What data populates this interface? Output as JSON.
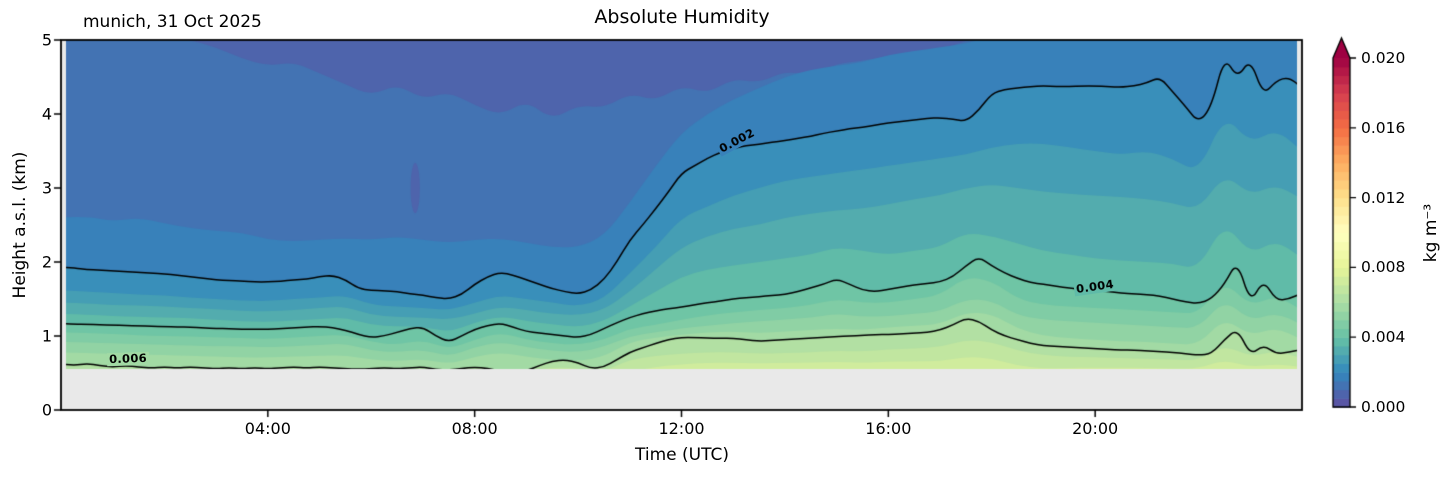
{
  "header": {
    "title": "Absolute Humidity",
    "annotation": "munich, 31 Oct 2025"
  },
  "axes": {
    "xlabel": "Time (UTC)",
    "ylabel": "Height a.s.l. (km)",
    "background": "#e9e9e9",
    "spine_color": "#000000",
    "x_ticks": [
      {
        "hour": 4,
        "label": "04:00"
      },
      {
        "hour": 8,
        "label": "08:00"
      },
      {
        "hour": 12,
        "label": "12:00"
      },
      {
        "hour": 16,
        "label": "16:00"
      },
      {
        "hour": 20,
        "label": "20:00"
      }
    ],
    "y_ticks": [
      {
        "km": 0,
        "label": "0"
      },
      {
        "km": 1,
        "label": "1"
      },
      {
        "km": 2,
        "label": "2"
      },
      {
        "km": 3,
        "label": "3"
      },
      {
        "km": 4,
        "label": "4"
      },
      {
        "km": 5,
        "label": "5"
      }
    ]
  },
  "colorbar": {
    "label": "kg m⁻³",
    "vmin": 0.0,
    "vmax": 0.02,
    "n_bands": 40,
    "extend": "max",
    "over_color": "#9e0142",
    "outline_color": "#000000",
    "ticks": [
      {
        "value": 0.0,
        "label": "0.000"
      },
      {
        "value": 0.004,
        "label": "0.004"
      },
      {
        "value": 0.008,
        "label": "0.008"
      },
      {
        "value": 0.012,
        "label": "0.012"
      },
      {
        "value": 0.016,
        "label": "0.016"
      },
      {
        "value": 0.02,
        "label": "0.020"
      }
    ]
  },
  "colormap": {
    "name": "Spectral_r",
    "anchors": [
      "#5e4fa2",
      "#3288bd",
      "#66c2a5",
      "#abdda4",
      "#e6f598",
      "#ffffbf",
      "#fee08b",
      "#fdae61",
      "#f46d43",
      "#d53e4f",
      "#9e0142"
    ]
  },
  "chart_data": {
    "type": "heatmap",
    "title": "Absolute Humidity",
    "xlabel": "Time (UTC)",
    "ylabel": "Height a.s.l. (km)",
    "units": "kg m⁻³",
    "x_range_hours": [
      0,
      24
    ],
    "y_range_km": [
      0,
      5
    ],
    "data_floor_km": 0.555,
    "band_interval": 0.0005,
    "contour_line_color": "#000000",
    "labeled_contour_levels": [
      0.002,
      0.004,
      0.006
    ],
    "contour_labels": [
      {
        "text": "0.002",
        "hour": 13.07,
        "km": 3.64,
        "angle_deg": -28,
        "bg": "#3881ba"
      },
      {
        "text": "0.004",
        "hour": 20.0,
        "km": 1.66,
        "angle_deg": -8,
        "bg": "#60bba8"
      },
      {
        "text": "0.006",
        "hour": 1.3,
        "km": 0.69,
        "angle_deg": -2,
        "bg": "#a2daa4"
      }
    ],
    "anomaly": {
      "center_hour": 6.85,
      "center_km": 3.0,
      "rx_hours": 0.09,
      "ry_km": 0.34,
      "band_value": 0.00075
    },
    "isolines": [
      {
        "level": 0.001,
        "step_h": 0.5,
        "heights_km": [
          5.15,
          5.12,
          5.1,
          5.08,
          5.05,
          5.0,
          4.9,
          4.75,
          4.65,
          4.7,
          4.55,
          4.4,
          4.25,
          4.4,
          4.2,
          4.3,
          4.12,
          3.98,
          4.18,
          3.92,
          4.12,
          4.08,
          4.28,
          4.18,
          4.38,
          4.28,
          4.48,
          4.42,
          4.58,
          4.52,
          4.68,
          4.72,
          4.78,
          4.82,
          4.88,
          4.98,
          5.12,
          5.18,
          5.22,
          5.22,
          5.25,
          5.22,
          5.18,
          5.08,
          4.98,
          5.18,
          5.08,
          5.12,
          5.02
        ]
      },
      {
        "level": 0.0015,
        "step_h": 0.5,
        "heights_km": [
          2.6,
          2.62,
          2.55,
          2.6,
          2.52,
          2.46,
          2.42,
          2.4,
          2.3,
          2.28,
          2.3,
          2.32,
          2.3,
          2.34,
          2.3,
          2.26,
          2.3,
          2.32,
          2.26,
          2.2,
          2.2,
          2.35,
          2.8,
          3.3,
          3.75,
          4.0,
          4.2,
          4.35,
          4.5,
          4.6,
          4.65,
          4.7,
          4.8,
          4.85,
          4.9,
          4.95,
          5.05,
          5.08,
          5.08,
          5.06,
          5.08,
          5.06,
          5.05,
          5.02,
          4.98,
          5.1,
          5.05,
          5.08,
          5.02
        ]
      },
      {
        "level": 0.002,
        "step_h": 0.25,
        "heights_km": [
          1.93,
          1.92,
          1.9,
          1.89,
          1.88,
          1.87,
          1.86,
          1.85,
          1.84,
          1.82,
          1.8,
          1.78,
          1.76,
          1.75,
          1.74,
          1.73,
          1.73,
          1.74,
          1.76,
          1.77,
          1.8,
          1.82,
          1.76,
          1.64,
          1.62,
          1.61,
          1.6,
          1.57,
          1.55,
          1.52,
          1.5,
          1.56,
          1.7,
          1.8,
          1.86,
          1.82,
          1.76,
          1.7,
          1.64,
          1.6,
          1.57,
          1.62,
          1.76,
          2.0,
          2.3,
          2.5,
          2.72,
          2.95,
          3.2,
          3.3,
          3.4,
          3.48,
          3.54,
          3.57,
          3.59,
          3.62,
          3.64,
          3.67,
          3.7,
          3.74,
          3.77,
          3.8,
          3.82,
          3.85,
          3.88,
          3.9,
          3.92,
          3.94,
          3.95,
          3.93,
          3.9,
          4.05,
          4.28,
          4.33,
          4.35,
          4.37,
          4.38,
          4.37,
          4.37,
          4.38,
          4.38,
          4.37,
          4.36,
          4.38,
          4.42,
          4.5,
          4.3,
          4.1,
          3.88,
          4.1,
          4.78,
          4.48,
          4.75,
          4.25,
          4.45,
          4.5,
          4.35
        ]
      },
      {
        "level": 0.0025,
        "step_h": 0.5,
        "heights_km": [
          1.62,
          1.6,
          1.58,
          1.56,
          1.55,
          1.52,
          1.5,
          1.48,
          1.47,
          1.5,
          1.52,
          1.55,
          1.42,
          1.4,
          1.38,
          1.35,
          1.45,
          1.55,
          1.5,
          1.45,
          1.4,
          1.5,
          1.85,
          2.2,
          2.6,
          2.75,
          2.9,
          3.0,
          3.1,
          3.15,
          3.2,
          3.25,
          3.3,
          3.35,
          3.4,
          3.45,
          3.55,
          3.6,
          3.6,
          3.55,
          3.5,
          3.45,
          3.5,
          3.4,
          3.2,
          4.0,
          3.6,
          3.8,
          3.5
        ]
      },
      {
        "level": 0.003,
        "step_h": 0.5,
        "heights_km": [
          1.45,
          1.44,
          1.42,
          1.41,
          1.4,
          1.38,
          1.36,
          1.34,
          1.33,
          1.35,
          1.38,
          1.4,
          1.28,
          1.26,
          1.25,
          1.22,
          1.3,
          1.4,
          1.35,
          1.3,
          1.28,
          1.35,
          1.6,
          1.9,
          2.2,
          2.35,
          2.45,
          2.5,
          2.6,
          2.65,
          2.7,
          2.72,
          2.78,
          2.85,
          2.9,
          3.0,
          3.05,
          3.0,
          2.95,
          2.92,
          2.9,
          2.88,
          2.85,
          2.8,
          2.7,
          3.2,
          2.9,
          3.05,
          2.85
        ]
      },
      {
        "level": 0.0035,
        "step_h": 0.5,
        "heights_km": [
          1.3,
          1.29,
          1.27,
          1.26,
          1.25,
          1.24,
          1.22,
          1.2,
          1.19,
          1.21,
          1.23,
          1.25,
          1.15,
          1.13,
          1.13,
          1.05,
          1.18,
          1.27,
          1.2,
          1.16,
          1.12,
          1.2,
          1.4,
          1.6,
          1.8,
          1.9,
          1.95,
          2.0,
          2.05,
          2.1,
          2.2,
          2.15,
          2.1,
          2.15,
          2.2,
          2.4,
          2.35,
          2.25,
          2.15,
          2.1,
          2.05,
          2.02,
          2.0,
          1.98,
          1.9,
          2.55,
          2.1,
          2.3,
          2.05
        ]
      },
      {
        "level": 0.004,
        "step_h": 0.25,
        "heights_km": [
          1.17,
          1.16,
          1.16,
          1.15,
          1.15,
          1.14,
          1.14,
          1.13,
          1.13,
          1.12,
          1.12,
          1.11,
          1.1,
          1.1,
          1.09,
          1.09,
          1.09,
          1.1,
          1.11,
          1.12,
          1.13,
          1.11,
          1.08,
          1.02,
          0.98,
          1.0,
          1.05,
          1.1,
          1.12,
          1.0,
          0.92,
          1.0,
          1.09,
          1.14,
          1.17,
          1.12,
          1.06,
          1.04,
          1.02,
          1.0,
          0.98,
          1.02,
          1.1,
          1.18,
          1.25,
          1.3,
          1.34,
          1.37,
          1.39,
          1.42,
          1.45,
          1.47,
          1.5,
          1.52,
          1.53,
          1.55,
          1.56,
          1.6,
          1.65,
          1.7,
          1.77,
          1.7,
          1.62,
          1.6,
          1.63,
          1.66,
          1.69,
          1.71,
          1.73,
          1.8,
          1.95,
          2.07,
          1.95,
          1.85,
          1.78,
          1.72,
          1.7,
          1.67,
          1.65,
          1.63,
          1.62,
          1.6,
          1.58,
          1.57,
          1.56,
          1.54,
          1.5,
          1.46,
          1.44,
          1.5,
          1.7,
          2.02,
          1.44,
          1.76,
          1.48,
          1.5,
          1.58
        ]
      },
      {
        "level": 0.0045,
        "step_h": 0.5,
        "heights_km": [
          1.05,
          1.04,
          1.03,
          1.01,
          1.0,
          0.99,
          0.98,
          0.97,
          0.96,
          0.98,
          1.0,
          1.02,
          0.92,
          0.88,
          0.95,
          0.82,
          0.95,
          1.05,
          0.95,
          0.9,
          0.88,
          0.95,
          1.1,
          1.15,
          1.22,
          1.28,
          1.32,
          1.35,
          1.38,
          1.42,
          1.5,
          1.45,
          1.45,
          1.5,
          1.55,
          1.8,
          1.75,
          1.5,
          1.42,
          1.4,
          1.38,
          1.36,
          1.34,
          1.32,
          1.3,
          1.75,
          1.4,
          1.55,
          1.35
        ]
      },
      {
        "level": 0.005,
        "step_h": 0.5,
        "heights_km": [
          0.92,
          0.91,
          0.9,
          0.89,
          0.88,
          0.87,
          0.86,
          0.86,
          0.85,
          0.86,
          0.88,
          0.9,
          0.8,
          0.78,
          0.82,
          0.72,
          0.85,
          0.92,
          0.85,
          0.8,
          0.78,
          0.85,
          1.0,
          1.05,
          1.1,
          1.14,
          1.17,
          1.2,
          1.22,
          1.25,
          1.3,
          1.26,
          1.27,
          1.3,
          1.33,
          1.5,
          1.48,
          1.28,
          1.22,
          1.2,
          1.18,
          1.16,
          1.14,
          1.12,
          1.1,
          1.5,
          1.2,
          1.32,
          1.15
        ]
      },
      {
        "level": 0.0055,
        "step_h": 0.5,
        "heights_km": [
          0.78,
          0.77,
          0.76,
          0.75,
          0.74,
          0.73,
          0.72,
          0.71,
          0.71,
          0.72,
          0.73,
          0.74,
          0.68,
          0.66,
          0.69,
          0.62,
          0.72,
          0.78,
          0.72,
          0.68,
          0.66,
          0.72,
          0.92,
          0.98,
          1.02,
          1.05,
          1.06,
          1.04,
          1.06,
          1.08,
          1.1,
          1.08,
          1.12,
          1.14,
          1.16,
          1.32,
          1.3,
          1.1,
          1.0,
          0.97,
          0.95,
          0.93,
          0.92,
          0.9,
          0.88,
          1.25,
          1.0,
          1.12,
          0.95
        ]
      },
      {
        "level": 0.006,
        "step_h": 0.25,
        "heights_km": [
          0.62,
          0.6,
          0.63,
          0.6,
          0.58,
          0.6,
          0.58,
          0.57,
          0.58,
          0.57,
          0.58,
          0.57,
          0.56,
          0.57,
          0.56,
          0.57,
          0.56,
          0.57,
          0.58,
          0.57,
          0.58,
          0.57,
          0.56,
          0.55,
          0.56,
          0.57,
          0.56,
          0.57,
          0.58,
          0.55,
          0.54,
          0.56,
          0.58,
          0.56,
          0.53,
          0.52,
          0.53,
          0.6,
          0.66,
          0.68,
          0.64,
          0.56,
          0.58,
          0.68,
          0.78,
          0.84,
          0.9,
          0.95,
          0.98,
          0.98,
          0.97,
          0.97,
          0.97,
          0.95,
          0.93,
          0.94,
          0.95,
          0.96,
          0.97,
          0.98,
          0.99,
          1.0,
          1.01,
          1.02,
          1.02,
          1.03,
          1.04,
          1.05,
          1.08,
          1.15,
          1.24,
          1.2,
          1.08,
          1.0,
          0.95,
          0.9,
          0.87,
          0.86,
          0.85,
          0.84,
          0.83,
          0.82,
          0.81,
          0.81,
          0.8,
          0.79,
          0.78,
          0.76,
          0.74,
          0.76,
          0.95,
          1.1,
          0.74,
          0.88,
          0.76,
          0.78,
          0.82
        ]
      },
      {
        "level": 0.0065,
        "step_h": 0.5,
        "heights_km": [
          0.55,
          0.55,
          0.54,
          0.54,
          0.53,
          0.53,
          0.52,
          0.53,
          0.52,
          0.53,
          0.53,
          0.54,
          0.52,
          0.52,
          0.53,
          0.5,
          0.52,
          0.55,
          0.52,
          0.58,
          0.56,
          0.52,
          0.68,
          0.73,
          0.76,
          0.78,
          0.78,
          0.76,
          0.77,
          0.78,
          0.8,
          0.79,
          0.82,
          0.83,
          0.85,
          0.95,
          0.92,
          0.8,
          0.74,
          0.72,
          0.71,
          0.7,
          0.69,
          0.68,
          0.67,
          0.88,
          0.72,
          0.8,
          0.7
        ]
      },
      {
        "level": 0.007,
        "step_h": 0.5,
        "heights_km": [
          0.48,
          0.48,
          0.48,
          0.48,
          0.48,
          0.48,
          0.48,
          0.48,
          0.48,
          0.48,
          0.48,
          0.48,
          0.48,
          0.48,
          0.48,
          0.48,
          0.52,
          0.56,
          0.52,
          0.48,
          0.48,
          0.48,
          0.52,
          0.58,
          0.62,
          0.64,
          0.64,
          0.63,
          0.64,
          0.64,
          0.65,
          0.64,
          0.65,
          0.66,
          0.66,
          0.72,
          0.7,
          0.6,
          0.56,
          0.57,
          0.57,
          0.57,
          0.57,
          0.56,
          0.56,
          0.68,
          0.58,
          0.62,
          0.58
        ]
      }
    ]
  }
}
